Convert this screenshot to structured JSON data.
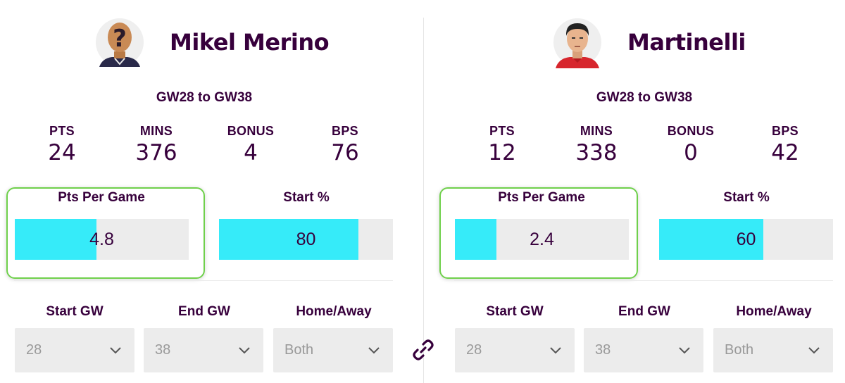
{
  "players": [
    {
      "name": "Mikel Merino",
      "avatar_icon": "unknown-player-icon",
      "range": "GW28 to GW38",
      "stats": [
        {
          "label": "PTS",
          "value": "24"
        },
        {
          "label": "MINS",
          "value": "376"
        },
        {
          "label": "BONUS",
          "value": "4"
        },
        {
          "label": "BPS",
          "value": "76"
        }
      ],
      "metrics": [
        {
          "title": "Pts Per Game",
          "value": "4.8",
          "fill_fraction": 0.47
        },
        {
          "title": "Start %",
          "value": "80",
          "fill_fraction": 0.8
        }
      ],
      "filters": [
        {
          "label": "Start GW",
          "value": "28"
        },
        {
          "label": "End GW",
          "value": "38"
        },
        {
          "label": "Home/Away",
          "value": "Both"
        }
      ]
    },
    {
      "name": "Martinelli",
      "avatar_icon": "player-face-icon",
      "range": "GW28 to GW38",
      "stats": [
        {
          "label": "PTS",
          "value": "12"
        },
        {
          "label": "MINS",
          "value": "338"
        },
        {
          "label": "BONUS",
          "value": "0"
        },
        {
          "label": "BPS",
          "value": "42"
        }
      ],
      "metrics": [
        {
          "title": "Pts Per Game",
          "value": "2.4",
          "fill_fraction": 0.24
        },
        {
          "title": "Start %",
          "value": "60",
          "fill_fraction": 0.6
        }
      ],
      "filters": [
        {
          "label": "Start GW",
          "value": "28"
        },
        {
          "label": "End GW",
          "value": "38"
        },
        {
          "label": "Home/Away",
          "value": "Both"
        }
      ]
    }
  ],
  "colors": {
    "text": "#37003c",
    "bar_fill": "#36ebf9",
    "bar_track": "#ececec",
    "highlight": "#6fd04b"
  },
  "link_icon": "link-icon"
}
